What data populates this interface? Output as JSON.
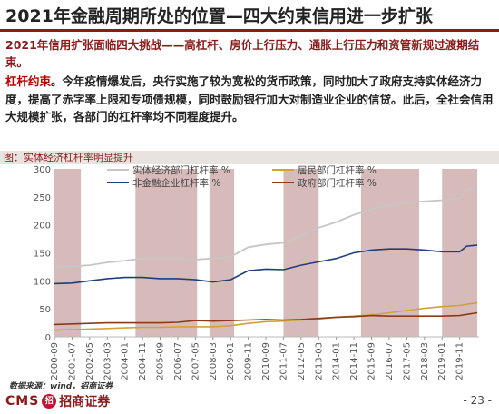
{
  "title": "2021年金融周期所处的位置—四大约束信用进一步扩张",
  "subtitle": "2021年信用扩张面临四大挑战——高杠杆、房价上行压力、通胀上行压力和资管新规过渡期结束。",
  "body_lead": "杠杆约束",
  "body_rest": "。今年疫情爆发后，央行实施了较为宽松的货币政策，同时加大了政府支持实体经济力度，提高了赤字率上限和专项债规模，同时鼓励银行加大对制造业企业的信贷。此后，全社会信用大规模扩张，各部门的杠杆率均不同程度提升。",
  "caption": "图：实体经济杠杆率明显提升",
  "source": "数据来源：wind，招商证券",
  "logo": {
    "cms": "CMS",
    "mark": "招",
    "name": "招商证券"
  },
  "page_number": "- 23 -",
  "colors": {
    "real": "#c6c6c6",
    "household": "#d4a03a",
    "nonfin": "#1f3e7a",
    "gov": "#8b3a1a",
    "shade": "#c9a3a3",
    "brand": "#8b1a1a"
  },
  "chart_data": {
    "type": "line",
    "title": "",
    "xlabel": "",
    "ylabel": "",
    "ylim": [
      0,
      300
    ],
    "yticks": [
      0,
      50,
      100,
      150,
      200,
      250,
      300
    ],
    "legend_position": "top",
    "categories": [
      "2000-09",
      "2001-07",
      "2002-05",
      "2003-03",
      "2004-01",
      "2004-11",
      "2005-09",
      "2006-07",
      "2007-05",
      "2008-03",
      "2009-01",
      "2009-11",
      "2010-09",
      "2011-07",
      "2012-05",
      "2013-03",
      "2014-01",
      "2014-11",
      "2015-09",
      "2016-07",
      "2017-05",
      "2018-03",
      "2019-01",
      "2019-11"
    ],
    "shaded_periods": [
      [
        "2000-09",
        "2001-12"
      ],
      [
        "2004-07",
        "2007-06"
      ],
      [
        "2008-01",
        "2009-03"
      ],
      [
        "2011-07",
        "2013-03"
      ],
      [
        "2015-03",
        "2017-12"
      ],
      [
        "2019-01",
        "2020-09"
      ]
    ],
    "series": [
      {
        "name": "实体经济部门杠杆率 %",
        "color_key": "real",
        "points": [
          [
            "2000-09",
            125
          ],
          [
            "2001-07",
            126
          ],
          [
            "2002-05",
            128
          ],
          [
            "2003-03",
            133
          ],
          [
            "2004-01",
            136
          ],
          [
            "2004-11",
            140
          ],
          [
            "2005-09",
            140
          ],
          [
            "2006-07",
            140
          ],
          [
            "2007-05",
            138
          ],
          [
            "2008-03",
            140
          ],
          [
            "2009-01",
            143
          ],
          [
            "2009-11",
            160
          ],
          [
            "2010-09",
            165
          ],
          [
            "2011-07",
            168
          ],
          [
            "2012-05",
            180
          ],
          [
            "2013-03",
            195
          ],
          [
            "2014-01",
            205
          ],
          [
            "2014-11",
            218
          ],
          [
            "2015-09",
            228
          ],
          [
            "2016-07",
            235
          ],
          [
            "2017-05",
            240
          ],
          [
            "2018-03",
            242
          ],
          [
            "2019-01",
            244
          ],
          [
            "2019-11",
            248
          ],
          [
            "2020-03",
            262
          ],
          [
            "2020-09",
            270
          ]
        ]
      },
      {
        "name": "居民部门杠杆率 %",
        "color_key": "household",
        "points": [
          [
            "2000-09",
            12
          ],
          [
            "2001-07",
            13
          ],
          [
            "2002-05",
            14
          ],
          [
            "2003-03",
            15
          ],
          [
            "2004-01",
            16
          ],
          [
            "2004-11",
            17
          ],
          [
            "2005-09",
            17
          ],
          [
            "2006-07",
            18
          ],
          [
            "2007-05",
            18
          ],
          [
            "2008-03",
            18
          ],
          [
            "2009-01",
            20
          ],
          [
            "2009-11",
            24
          ],
          [
            "2010-09",
            27
          ],
          [
            "2011-07",
            28
          ],
          [
            "2012-05",
            30
          ],
          [
            "2013-03",
            32
          ],
          [
            "2014-01",
            35
          ],
          [
            "2014-11",
            37
          ],
          [
            "2015-09",
            39
          ],
          [
            "2016-07",
            43
          ],
          [
            "2017-05",
            47
          ],
          [
            "2018-03",
            51
          ],
          [
            "2019-01",
            54
          ],
          [
            "2019-11",
            56
          ],
          [
            "2020-03",
            58
          ],
          [
            "2020-09",
            61
          ]
        ]
      },
      {
        "name": "非金融企业杠杆率 %",
        "color_key": "nonfin",
        "points": [
          [
            "2000-09",
            95
          ],
          [
            "2001-07",
            96
          ],
          [
            "2002-05",
            100
          ],
          [
            "2003-03",
            104
          ],
          [
            "2004-01",
            106
          ],
          [
            "2004-11",
            106
          ],
          [
            "2005-09",
            104
          ],
          [
            "2006-07",
            104
          ],
          [
            "2007-05",
            102
          ],
          [
            "2008-03",
            98
          ],
          [
            "2009-01",
            102
          ],
          [
            "2009-11",
            118
          ],
          [
            "2010-09",
            121
          ],
          [
            "2011-07",
            120
          ],
          [
            "2012-05",
            128
          ],
          [
            "2013-03",
            134
          ],
          [
            "2014-01",
            140
          ],
          [
            "2014-11",
            150
          ],
          [
            "2015-09",
            155
          ],
          [
            "2016-07",
            157
          ],
          [
            "2017-05",
            157
          ],
          [
            "2018-03",
            155
          ],
          [
            "2019-01",
            152
          ],
          [
            "2019-11",
            152
          ],
          [
            "2020-03",
            162
          ],
          [
            "2020-09",
            164
          ]
        ]
      },
      {
        "name": "政府部门杠杆率 %",
        "color_key": "gov",
        "points": [
          [
            "2000-09",
            22
          ],
          [
            "2001-07",
            23
          ],
          [
            "2002-05",
            24
          ],
          [
            "2003-03",
            25
          ],
          [
            "2004-01",
            25
          ],
          [
            "2004-11",
            25
          ],
          [
            "2005-09",
            25
          ],
          [
            "2006-07",
            26
          ],
          [
            "2007-05",
            29
          ],
          [
            "2008-03",
            28
          ],
          [
            "2009-01",
            29
          ],
          [
            "2009-11",
            30
          ],
          [
            "2010-09",
            31
          ],
          [
            "2011-07",
            30
          ],
          [
            "2012-05",
            31
          ],
          [
            "2013-03",
            33
          ],
          [
            "2014-01",
            35
          ],
          [
            "2014-11",
            36
          ],
          [
            "2015-09",
            38
          ],
          [
            "2016-07",
            37
          ],
          [
            "2017-05",
            37
          ],
          [
            "2018-03",
            37
          ],
          [
            "2019-01",
            37
          ],
          [
            "2019-11",
            38
          ],
          [
            "2020-03",
            40
          ],
          [
            "2020-09",
            43
          ]
        ]
      }
    ]
  }
}
